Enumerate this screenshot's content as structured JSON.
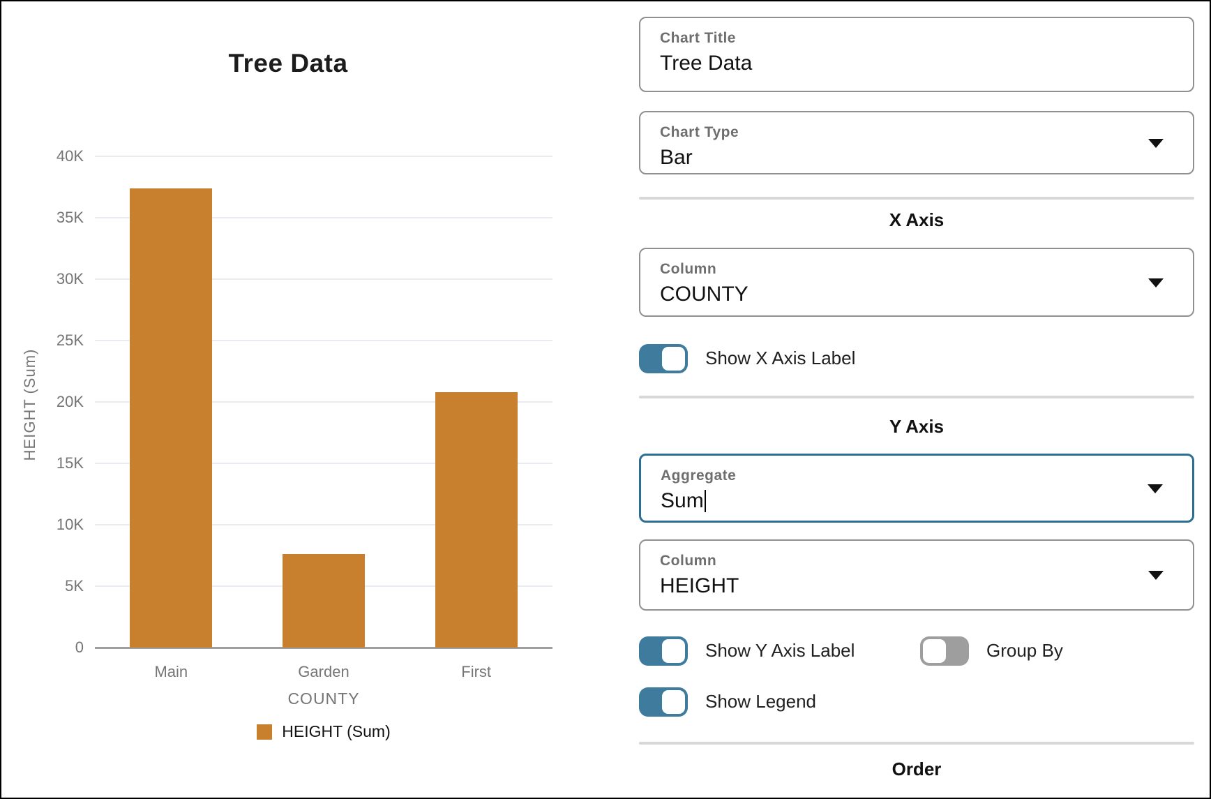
{
  "colors": {
    "bar": "#c9802e",
    "toggle_on": "#3e7b9c",
    "toggle_off": "#9e9e9e",
    "focus_border": "#2d6f92",
    "grid_line": "#e9ecf2",
    "axis_line": "#9e9e9e"
  },
  "chart_data": {
    "type": "bar",
    "title": "Tree Data",
    "categories": [
      "Main",
      "Garden",
      "First"
    ],
    "series": [
      {
        "name": "HEIGHT (Sum)",
        "color": "#c9802e",
        "values": [
          37400,
          7600,
          20800
        ]
      }
    ],
    "xlabel": "COUNTY",
    "ylabel": "HEIGHT (Sum)",
    "ylim": [
      0,
      40000
    ],
    "grid": true,
    "yticks": [
      {
        "value": 0,
        "label": "0"
      },
      {
        "value": 5000,
        "label": "5K"
      },
      {
        "value": 10000,
        "label": "10K"
      },
      {
        "value": 15000,
        "label": "15K"
      },
      {
        "value": 20000,
        "label": "20K"
      },
      {
        "value": 25000,
        "label": "25K"
      },
      {
        "value": 30000,
        "label": "30K"
      },
      {
        "value": 35000,
        "label": "35K"
      },
      {
        "value": 40000,
        "label": "40K"
      }
    ],
    "legend": {
      "position": "bottom",
      "entries": [
        {
          "label": "HEIGHT (Sum)",
          "color": "#c9802e"
        }
      ]
    }
  },
  "panel": {
    "chart_title_field": {
      "label": "Chart Title",
      "value": "Tree Data"
    },
    "chart_type_field": {
      "label": "Chart Type",
      "value": "Bar"
    },
    "x_axis": {
      "heading": "X Axis",
      "column_field": {
        "label": "Column",
        "value": "COUNTY"
      },
      "show_x_axis_label_toggle": {
        "label": "Show X Axis Label",
        "on": true
      }
    },
    "y_axis": {
      "heading": "Y Axis",
      "aggregate_field": {
        "label": "Aggregate",
        "value": "Sum",
        "focused": true
      },
      "column_field": {
        "label": "Column",
        "value": "HEIGHT"
      },
      "show_y_axis_label_toggle": {
        "label": "Show Y Axis Label",
        "on": true
      },
      "group_by_toggle": {
        "label": "Group By",
        "on": false
      },
      "show_legend_toggle": {
        "label": "Show Legend",
        "on": true
      }
    },
    "order_section": {
      "heading": "Order"
    }
  }
}
